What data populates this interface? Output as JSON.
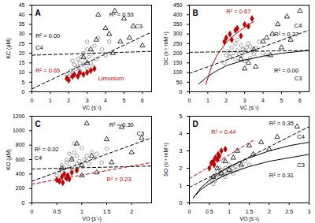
{
  "chart_data": [
    {
      "type": "scatter",
      "title": "A",
      "xlabel": "VC (s⁻¹)",
      "ylabel": "KC (μM)",
      "xlim": [
        0,
        6.5
      ],
      "xticks": [
        0,
        1,
        2,
        3,
        4,
        5,
        6
      ],
      "ylim": [
        0,
        45
      ],
      "yticks": [
        0,
        5,
        10,
        15,
        20,
        25,
        30,
        35,
        40,
        45
      ],
      "series": [
        {
          "type": "scatter",
          "marker": "circle",
          "color": "#8c8c8c",
          "x": [
            2.0,
            2.1,
            2.2,
            2.3,
            2.4,
            2.5,
            2.5,
            2.6,
            2.7,
            2.8,
            2.8,
            2.9,
            3.0,
            3.0,
            3.1,
            3.2,
            3.3,
            3.4,
            3.5,
            3.6,
            3.8,
            4.0,
            4.2,
            1.9,
            2.6,
            3.0,
            3.3,
            2.2
          ],
          "values": [
            8,
            11,
            10,
            14,
            12,
            13,
            17,
            15,
            18,
            14,
            20,
            16,
            12,
            22,
            18,
            15,
            20,
            24,
            17,
            28,
            22,
            19,
            26,
            9,
            11,
            26,
            13,
            16
          ]
        },
        {
          "type": "scatter",
          "marker": "triangle",
          "color": "#000000",
          "x": [
            2.8,
            3.2,
            3.5,
            3.6,
            4.0,
            4.2,
            4.5,
            4.8,
            5.0,
            5.3,
            5.5,
            6.0,
            3.0,
            4.4
          ],
          "values": [
            18,
            22,
            27,
            40,
            33,
            30,
            42,
            26,
            38,
            28,
            34,
            24,
            15,
            20
          ]
        },
        {
          "type": "scatter",
          "marker": "diamond",
          "color": "#c00000",
          "x": [
            1.9,
            2.0,
            2.2,
            2.3,
            2.5,
            2.6,
            2.8,
            3.0,
            3.2,
            3.4
          ],
          "values": [
            7,
            6,
            8,
            9,
            8,
            10,
            9,
            10,
            11,
            12
          ]
        },
        {
          "type": "line",
          "line_style": "dashed",
          "color": "#000000",
          "x": [
            0,
            6.5
          ],
          "values": [
            1.5,
            31
          ]
        },
        {
          "type": "line",
          "line_style": "dashed",
          "color": "#000000",
          "x": [
            0,
            6.5
          ],
          "values": [
            19,
            21
          ]
        },
        {
          "type": "line",
          "line_style": "dashed",
          "color": "#c00000",
          "x": [
            1.8,
            3.5
          ],
          "values": [
            6.5,
            12
          ]
        }
      ],
      "annotations": [
        {
          "text": "R² = 0.53",
          "x": 4.2,
          "y": 40,
          "color": "#000000"
        },
        {
          "text": "C3",
          "x": 5.6,
          "y": 34,
          "color": "#000000"
        },
        {
          "text": "C4",
          "x": 0.2,
          "y": 23,
          "color": "#000000"
        },
        {
          "text": "R² = 0.00",
          "x": 0.2,
          "y": 29,
          "color": "#000000"
        },
        {
          "text": "Limonium",
          "x": 3.6,
          "y": 7,
          "color": "#c00000"
        },
        {
          "text": "R² = 0.65",
          "x": 0.2,
          "y": 11,
          "color": "#c00000"
        }
      ]
    },
    {
      "type": "scatter",
      "title": "B",
      "xlabel": "VC (s⁻¹)",
      "ylabel": "SC (s⁻¹·mM⁻¹)",
      "xlim": [
        0,
        6.5
      ],
      "xticks": [
        0,
        1,
        2,
        3,
        4,
        5,
        6
      ],
      "ylim": [
        0,
        450
      ],
      "yticks": [
        0,
        50,
        100,
        150,
        200,
        250,
        300,
        350,
        400,
        450
      ],
      "series": [
        {
          "type": "scatter",
          "marker": "circle",
          "color": "#8c8c8c",
          "x": [
            2.0,
            2.1,
            2.2,
            2.3,
            2.4,
            2.5,
            2.5,
            2.6,
            2.7,
            2.8,
            2.8,
            2.9,
            3.0,
            3.0,
            3.1,
            3.2,
            3.3,
            3.4,
            3.5,
            3.6,
            3.8,
            4.0,
            4.2,
            1.9,
            2.6,
            3.0,
            3.3,
            2.2
          ],
          "values": [
            190,
            210,
            180,
            230,
            200,
            170,
            250,
            215,
            195,
            240,
            185,
            220,
            160,
            205,
            230,
            250,
            175,
            210,
            195,
            225,
            260,
            200,
            190,
            150,
            270,
            215,
            235,
            185
          ]
        },
        {
          "type": "scatter",
          "marker": "triangle",
          "color": "#000000",
          "x": [
            2.8,
            3.2,
            3.5,
            3.6,
            4.0,
            4.2,
            4.5,
            4.8,
            5.0,
            5.3,
            5.5,
            6.0,
            3.0,
            4.4
          ],
          "values": [
            170,
            150,
            220,
            130,
            260,
            280,
            300,
            350,
            230,
            390,
            270,
            420,
            120,
            190
          ]
        },
        {
          "type": "scatter",
          "marker": "diamond",
          "color": "#c00000",
          "x": [
            1.9,
            2.0,
            2.2,
            2.3,
            2.5,
            2.6,
            2.8,
            3.0,
            3.2,
            3.4
          ],
          "values": [
            260,
            280,
            300,
            270,
            320,
            330,
            290,
            350,
            340,
            380
          ]
        },
        {
          "type": "line",
          "line_style": "dashed",
          "color": "#000000",
          "x": [
            0,
            6.5
          ],
          "values": [
            205,
            215
          ]
        },
        {
          "type": "line",
          "line_style": "dashed",
          "color": "#000000",
          "x": [
            0,
            6.5
          ],
          "values": [
            95,
            320
          ]
        },
        {
          "type": "line",
          "line_style": "solid",
          "color": "#000000",
          "x": [
            0.5,
            1,
            1.5,
            2,
            3,
            4,
            5,
            6,
            6.5
          ],
          "values": [
            40,
            80,
            110,
            135,
            165,
            185,
            200,
            210,
            214
          ]
        },
        {
          "type": "line",
          "line_style": "solid",
          "color": "#c00000",
          "x": [
            0.9,
            1.2,
            1.5,
            2,
            2.5,
            3,
            3.5
          ],
          "values": [
            40,
            130,
            190,
            255,
            300,
            335,
            365
          ]
        }
      ],
      "annotations": [
        {
          "text": "R² = 0.67",
          "x": 2.0,
          "y": 418,
          "color": "#c00000"
        },
        {
          "text": "C4",
          "x": 5.7,
          "y": 345,
          "color": "#000000"
        },
        {
          "text": "R² = 0.27",
          "x": 4.6,
          "y": 300,
          "color": "#000000"
        },
        {
          "text": "R² = 0.00",
          "x": 4.6,
          "y": 110,
          "color": "#000000"
        },
        {
          "text": "C3",
          "x": 5.7,
          "y": 70,
          "color": "#000000"
        }
      ]
    },
    {
      "type": "scatter",
      "title": "C",
      "xlabel": "VO (s⁻¹)",
      "ylabel": "KO (μM)",
      "xlim": [
        0,
        2.4
      ],
      "xticks": [
        0,
        0.5,
        1,
        1.5,
        2
      ],
      "ylim": [
        0,
        1200
      ],
      "yticks": [
        0,
        200,
        400,
        600,
        800,
        1000,
        1200
      ],
      "series": [
        {
          "type": "scatter",
          "marker": "circle",
          "color": "#8c8c8c",
          "x": [
            0.5,
            0.55,
            0.6,
            0.65,
            0.7,
            0.7,
            0.75,
            0.8,
            0.8,
            0.85,
            0.9,
            0.9,
            0.95,
            1.0,
            1.0,
            1.05,
            1.1,
            1.15,
            1.2,
            1.25,
            1.3,
            1.4,
            1.5,
            0.6,
            0.75,
            0.9,
            1.1,
            0.85
          ],
          "values": [
            380,
            450,
            520,
            480,
            560,
            600,
            500,
            620,
            450,
            700,
            540,
            650,
            580,
            520,
            760,
            600,
            650,
            540,
            700,
            620,
            680,
            560,
            750,
            420,
            680,
            470,
            580,
            820
          ]
        },
        {
          "type": "scatter",
          "marker": "triangle",
          "color": "#000000",
          "x": [
            0.6,
            0.7,
            0.8,
            0.9,
            1.0,
            1.1,
            1.2,
            1.3,
            1.5,
            1.6,
            1.8,
            2.0,
            2.2,
            1.0
          ],
          "values": [
            480,
            350,
            600,
            820,
            520,
            1100,
            650,
            420,
            880,
            560,
            1050,
            700,
            900,
            380
          ]
        },
        {
          "type": "scatter",
          "marker": "diamond",
          "color": "#c00000",
          "x": [
            0.5,
            0.55,
            0.6,
            0.62,
            0.65,
            0.7,
            0.72,
            0.75,
            0.8,
            0.9
          ],
          "values": [
            320,
            300,
            360,
            280,
            400,
            340,
            380,
            330,
            420,
            450
          ]
        },
        {
          "type": "line",
          "line_style": "dashed",
          "color": "#000000",
          "x": [
            0,
            2.4
          ],
          "values": [
            300,
            900
          ]
        },
        {
          "type": "line",
          "line_style": "dashed",
          "color": "#000000",
          "x": [
            0,
            2.4
          ],
          "values": [
            470,
            510
          ]
        },
        {
          "type": "line",
          "line_style": "dashed",
          "color": "#c00000",
          "x": [
            0,
            2.4
          ],
          "values": [
            260,
            560
          ]
        }
      ],
      "annotations": [
        {
          "text": "R² = 0.30",
          "x": 1.55,
          "y": 1080,
          "color": "#000000"
        },
        {
          "text": "C3",
          "x": 2.1,
          "y": 960,
          "color": "#000000"
        },
        {
          "text": "C4",
          "x": 0.05,
          "y": 620,
          "color": "#000000"
        },
        {
          "text": "R² = 0.02",
          "x": 0.05,
          "y": 740,
          "color": "#000000"
        },
        {
          "text": "R² = 0.23",
          "x": 1.5,
          "y": 330,
          "color": "#c00000"
        }
      ]
    },
    {
      "type": "scatter",
      "title": "D",
      "xlabel": "VO (s⁻¹)",
      "ylabel": "SO (s⁻¹·mM⁻¹)",
      "xlim": [
        0,
        3
      ],
      "xticks": [
        0,
        0.5,
        1,
        1.5,
        2,
        2.5,
        3
      ],
      "ylim": [
        0,
        5
      ],
      "yticks": [
        0,
        1,
        2,
        3,
        4,
        5
      ],
      "series": [
        {
          "type": "scatter",
          "marker": "circle",
          "color": "#8c8c8c",
          "x": [
            0.5,
            0.55,
            0.6,
            0.65,
            0.7,
            0.7,
            0.75,
            0.8,
            0.8,
            0.85,
            0.9,
            0.9,
            0.95,
            1.0,
            1.0,
            1.05,
            1.1,
            1.15,
            1.2,
            1.25,
            1.3,
            1.4,
            1.5,
            0.6,
            0.75,
            0.9,
            1.1,
            0.85
          ],
          "values": [
            1.2,
            1.4,
            1.5,
            1.3,
            1.6,
            1.8,
            1.5,
            1.7,
            1.9,
            1.6,
            1.8,
            2.0,
            1.7,
            1.9,
            2.2,
            1.8,
            2.0,
            2.1,
            1.9,
            2.3,
            2.1,
            2.4,
            2.2,
            1.1,
            2.0,
            1.5,
            1.7,
            2.4
          ]
        },
        {
          "type": "scatter",
          "marker": "triangle",
          "color": "#000000",
          "x": [
            0.6,
            0.7,
            0.8,
            0.9,
            1.0,
            1.1,
            1.2,
            1.3,
            1.5,
            1.6,
            1.8,
            2.0,
            2.2,
            2.7
          ],
          "values": [
            1.5,
            2.0,
            1.7,
            2.4,
            1.9,
            2.6,
            3.0,
            2.2,
            3.3,
            2.8,
            3.5,
            3.1,
            3.8,
            4.4
          ]
        },
        {
          "type": "scatter",
          "marker": "diamond",
          "color": "#c00000",
          "x": [
            0.5,
            0.55,
            0.6,
            0.62,
            0.65,
            0.7,
            0.72,
            0.75,
            0.8,
            0.9
          ],
          "values": [
            2.0,
            2.3,
            2.4,
            2.2,
            2.6,
            2.5,
            2.8,
            2.7,
            3.0,
            3.1
          ]
        },
        {
          "type": "line",
          "line_style": "dashed",
          "color": "#000000",
          "x": [
            0,
            3
          ],
          "values": [
            0.9,
            4.4
          ]
        },
        {
          "type": "line",
          "line_style": "dashed",
          "color": "#c00000",
          "x": [
            0,
            1.6
          ],
          "values": [
            1.4,
            3.6
          ]
        },
        {
          "type": "line",
          "line_style": "solid",
          "color": "#000000",
          "x": [
            0.1,
            0.3,
            0.5,
            0.8,
            1,
            1.5,
            2,
            2.5,
            3
          ],
          "values": [
            0.3,
            0.9,
            1.3,
            1.8,
            2.1,
            2.6,
            3.0,
            3.3,
            3.5
          ]
        },
        {
          "type": "line",
          "line_style": "solid",
          "color": "#000000",
          "x": [
            0.1,
            0.3,
            0.5,
            0.8,
            1,
            1.5,
            2,
            2.5,
            3
          ],
          "values": [
            0.3,
            0.8,
            1.1,
            1.5,
            1.7,
            2.1,
            2.4,
            2.6,
            2.8
          ]
        }
      ],
      "annotations": [
        {
          "text": "R² = 0.44",
          "x": 0.55,
          "y": 4.1,
          "color": "#c00000"
        },
        {
          "text": "R² = 0.35",
          "x": 2.0,
          "y": 4.6,
          "color": "#000000"
        },
        {
          "text": "C4",
          "x": 2.7,
          "y": 3.8,
          "color": "#000000"
        },
        {
          "text": "C3",
          "x": 2.7,
          "y": 2.2,
          "color": "#000000"
        },
        {
          "text": "R² = 0.31",
          "x": 2.0,
          "y": 1.6,
          "color": "#000000"
        }
      ]
    }
  ]
}
